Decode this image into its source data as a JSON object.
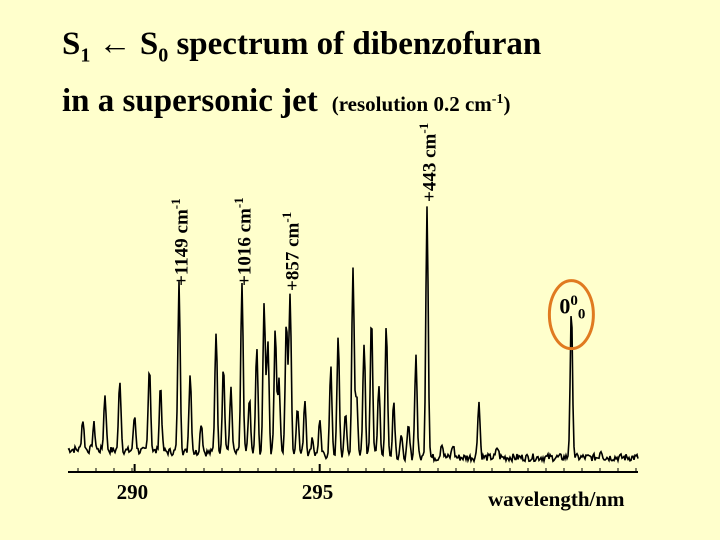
{
  "title": {
    "s1": "S",
    "s1_sub": "1",
    "arrow": " ← ",
    "s0": "S",
    "s0_sub": "0",
    "rest": " spectrum of dibenzofuran",
    "line2": "in a supersonic jet",
    "res_pre": "(resolution 0.2 cm",
    "res_sup": "-1",
    "res_post": ")"
  },
  "chart_data": {
    "type": "line",
    "title": "S1 ← S0 spectrum of dibenzofuran in a supersonic jet (resolution 0.2 cm-1)",
    "xlabel": "wavelength/nm",
    "ylabel": "",
    "xlim": [
      288.2,
      303.6
    ],
    "ylim": [
      0,
      1.0
    ],
    "xticks": [
      290,
      295
    ],
    "origin_band": {
      "label": "0",
      "sup": "0",
      "sub": "0",
      "x": 301.8,
      "intensity": 0.57
    },
    "labeled_bands": [
      {
        "label": "+443 cm",
        "sup": "-1",
        "x": 297.9,
        "intensity": 0.99
      },
      {
        "label": "+857 cm",
        "sup": "-1",
        "x": 294.2,
        "intensity": 0.64
      },
      {
        "label": "+1016 cm",
        "sup": "-1",
        "x": 292.9,
        "intensity": 0.66
      },
      {
        "label": "+1149 cm",
        "sup": "-1",
        "x": 291.2,
        "intensity": 0.66
      }
    ],
    "peaks": [
      {
        "x": 288.6,
        "h": 0.12
      },
      {
        "x": 288.9,
        "h": 0.1
      },
      {
        "x": 289.2,
        "h": 0.22
      },
      {
        "x": 289.6,
        "h": 0.28
      },
      {
        "x": 290.0,
        "h": 0.14
      },
      {
        "x": 290.4,
        "h": 0.34
      },
      {
        "x": 290.7,
        "h": 0.26
      },
      {
        "x": 291.2,
        "h": 0.66
      },
      {
        "x": 291.5,
        "h": 0.31
      },
      {
        "x": 291.8,
        "h": 0.12
      },
      {
        "x": 292.2,
        "h": 0.48
      },
      {
        "x": 292.4,
        "h": 0.34
      },
      {
        "x": 292.6,
        "h": 0.25
      },
      {
        "x": 292.9,
        "h": 0.66
      },
      {
        "x": 293.1,
        "h": 0.22
      },
      {
        "x": 293.3,
        "h": 0.42
      },
      {
        "x": 293.5,
        "h": 0.59
      },
      {
        "x": 293.6,
        "h": 0.45
      },
      {
        "x": 293.8,
        "h": 0.5
      },
      {
        "x": 293.9,
        "h": 0.29
      },
      {
        "x": 294.1,
        "h": 0.53
      },
      {
        "x": 294.2,
        "h": 0.64
      },
      {
        "x": 294.4,
        "h": 0.2
      },
      {
        "x": 294.6,
        "h": 0.22
      },
      {
        "x": 294.8,
        "h": 0.07
      },
      {
        "x": 295.0,
        "h": 0.13
      },
      {
        "x": 295.3,
        "h": 0.34
      },
      {
        "x": 295.5,
        "h": 0.46
      },
      {
        "x": 295.7,
        "h": 0.17
      },
      {
        "x": 295.9,
        "h": 0.73
      },
      {
        "x": 296.0,
        "h": 0.24
      },
      {
        "x": 296.2,
        "h": 0.44
      },
      {
        "x": 296.4,
        "h": 0.56
      },
      {
        "x": 296.6,
        "h": 0.29
      },
      {
        "x": 296.8,
        "h": 0.52
      },
      {
        "x": 297.0,
        "h": 0.22
      },
      {
        "x": 297.2,
        "h": 0.08
      },
      {
        "x": 297.4,
        "h": 0.12
      },
      {
        "x": 297.6,
        "h": 0.4
      },
      {
        "x": 297.9,
        "h": 0.99
      },
      {
        "x": 298.3,
        "h": 0.06
      },
      {
        "x": 298.6,
        "h": 0.05
      },
      {
        "x": 299.3,
        "h": 0.22
      },
      {
        "x": 299.8,
        "h": 0.04
      },
      {
        "x": 301.8,
        "h": 0.57
      },
      {
        "x": 302.6,
        "h": 0.03
      }
    ]
  }
}
